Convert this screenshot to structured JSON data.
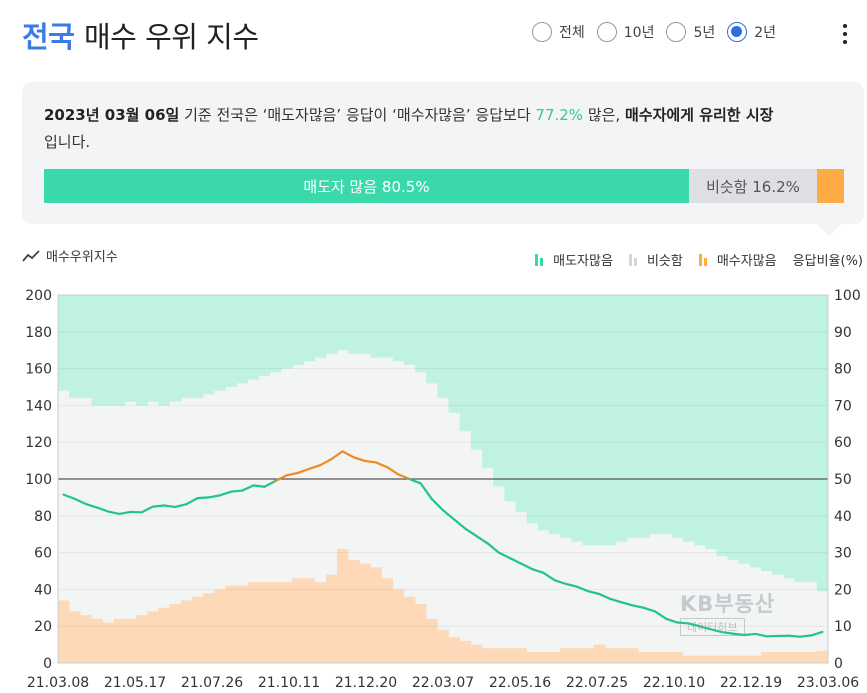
{
  "header": {
    "title_accent": "전국",
    "title_rest": "매수 우위 지수",
    "periods": [
      {
        "label": "전체",
        "selected": false
      },
      {
        "label": "10년",
        "selected": false
      },
      {
        "label": "5년",
        "selected": false
      },
      {
        "label": "2년",
        "selected": true
      }
    ]
  },
  "summary": {
    "date": "2023년 03월 06일",
    "text1": " 기준 전국은 ‘매도자많음’ 응답이 ‘매수자많음’ 응답보다 ",
    "pct": "77.2%",
    "text2": " 많은, ",
    "conclusion": "매수자에게 유리한 시장",
    "text3": "입니다.",
    "bar": {
      "sell_label": "매도자 많음 80.5%",
      "same_label": "비슷함 16.2%",
      "sell_value": 80.5,
      "same_value": 16.2,
      "buy_value": 3.3
    }
  },
  "legend": {
    "index_label": "매수우위지수",
    "sell_label": "매도자많음",
    "same_label": "비슷함",
    "buy_label": "매수자많음",
    "ratio_label": "응답비율(%)"
  },
  "colors": {
    "accent": "#3b7be6",
    "sell": "#3ad8aa",
    "sell_area": "#bff2e2",
    "same": "#dedfe2",
    "same_area": "#f3f4f4",
    "buy": "#ffab45",
    "buy_area": "#fdd9b8",
    "line_above": "#f08a24",
    "line_below": "#22c48c"
  },
  "watermark": {
    "brand": "KB부동산",
    "sub": "데이터허브"
  },
  "chart_data": {
    "type": "line",
    "title": "",
    "xlabel": "",
    "ylabel": "",
    "ylim": [
      0,
      200
    ],
    "y2lim": [
      0,
      100
    ],
    "y_ticks": [
      0,
      20,
      40,
      60,
      80,
      100,
      120,
      140,
      160,
      180,
      200
    ],
    "y2_ticks": [
      0,
      10,
      20,
      30,
      40,
      50,
      60,
      70,
      80,
      90,
      100
    ],
    "x_ticks": [
      "21.03.08",
      "21.05.17",
      "21.07.26",
      "21.10.11",
      "21.12.20",
      "22.03.07",
      "22.05.16",
      "22.07.25",
      "22.10.10",
      "22.12.19",
      "23.03.06"
    ],
    "reference_line": 100,
    "grid": true,
    "series": [
      {
        "name": "매수우위지수",
        "axis": "left",
        "values": [
          91.5,
          89.2,
          86.4,
          84.5,
          82.3,
          81.0,
          82.1,
          81.9,
          85.0,
          85.6,
          84.8,
          86.3,
          89.6,
          90.0,
          91.1,
          93.1,
          93.7,
          96.5,
          95.8,
          99.0,
          102.0,
          103.3,
          105.5,
          107.5,
          110.8,
          115.0,
          111.8,
          109.8,
          109.0,
          106.4,
          102.5,
          100.0,
          97.6,
          89.1,
          83.0,
          78.0,
          73.0,
          69.0,
          65.0,
          60.0,
          57.0,
          54.0,
          51.0,
          49.0,
          45.0,
          43.0,
          41.5,
          39.0,
          37.5,
          34.8,
          33.0,
          31.3,
          30.0,
          28.0,
          24.0,
          22.0,
          21.5,
          20.0,
          18.3,
          16.8,
          15.9,
          15.2,
          15.8,
          14.5,
          14.7,
          14.8,
          14.3,
          15.0,
          16.9
        ]
      },
      {
        "name": "매도자많음",
        "axis": "right",
        "values": [
          26,
          28,
          28,
          30,
          30,
          30,
          29,
          30,
          29,
          30,
          29,
          28,
          28,
          27,
          26,
          25,
          24,
          23,
          22,
          21,
          20,
          19,
          18,
          17,
          16,
          15,
          16,
          16,
          17,
          17,
          18,
          19,
          21,
          24,
          28,
          32,
          37,
          42,
          47,
          52,
          56,
          59,
          62,
          64,
          65,
          66,
          67,
          68,
          68,
          68,
          67,
          66,
          66,
          65,
          65,
          66,
          67,
          68,
          69,
          71,
          72,
          73,
          74,
          75,
          76,
          77,
          78,
          78,
          80.5
        ]
      },
      {
        "name": "매수자많음",
        "axis": "right",
        "values": [
          17,
          14,
          13,
          12,
          11,
          12,
          12,
          13,
          14,
          15,
          16,
          17,
          18,
          19,
          20,
          21,
          21,
          22,
          22,
          22,
          22,
          23,
          23,
          22,
          24,
          31,
          28,
          27,
          26,
          23,
          20,
          18,
          16,
          12,
          9,
          7,
          6,
          5,
          4,
          4,
          4,
          4,
          3,
          3,
          3,
          4,
          4,
          4,
          5,
          4,
          4,
          4,
          3,
          3,
          3,
          3,
          2,
          2,
          2,
          2,
          2,
          2,
          2,
          3,
          3,
          3,
          3,
          3,
          3.3
        ]
      }
    ]
  }
}
